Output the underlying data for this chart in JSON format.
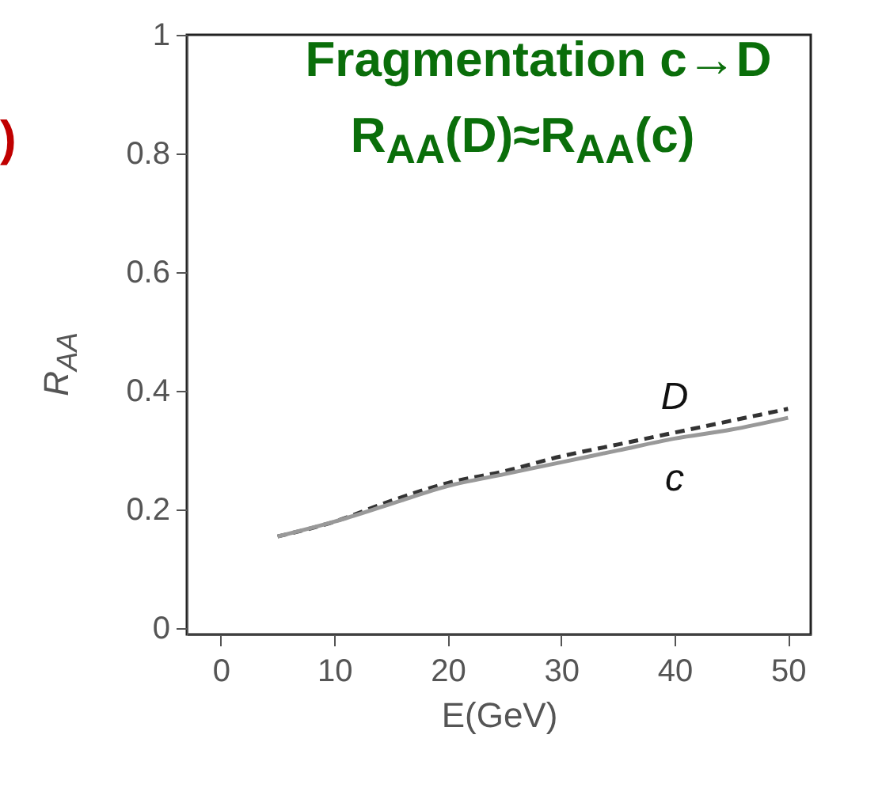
{
  "chart_data": {
    "type": "line",
    "xlabel": "E(GeV)",
    "ylabel": "R$_{AA}$",
    "annotations": [
      "Fragmentation c→D",
      "R$_{AA}$(D)≈R$_{AA}$(c)",
      ")"
    ],
    "x": [
      5,
      10,
      15,
      20,
      25,
      30,
      35,
      40,
      45,
      50
    ],
    "series": [
      {
        "name": "D",
        "color": "#333333",
        "line_style": "dashed",
        "values": [
          0.155,
          0.18,
          0.215,
          0.245,
          0.265,
          0.29,
          0.31,
          0.33,
          0.35,
          0.37
        ]
      },
      {
        "name": "c",
        "color": "#999999",
        "line_style": "solid",
        "values": [
          0.155,
          0.18,
          0.21,
          0.24,
          0.26,
          0.28,
          0.3,
          0.32,
          0.335,
          0.355
        ]
      }
    ],
    "xlim": [
      -3,
      52
    ],
    "xticks": [
      0,
      10,
      20,
      30,
      40,
      50
    ],
    "ylim": [
      -0.01,
      1
    ],
    "yticks": [
      0,
      0.2,
      0.4,
      0.6,
      0.8,
      1
    ],
    "grid": false
  }
}
